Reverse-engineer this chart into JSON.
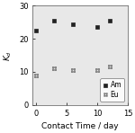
{
  "am_x": [
    0,
    3,
    6,
    10,
    12
  ],
  "am_y": [
    22.5,
    25.5,
    24.5,
    23.5,
    25.5
  ],
  "eu_x": [
    0,
    3,
    6,
    10,
    12
  ],
  "eu_y": [
    9.0,
    11.0,
    10.5,
    10.5,
    11.5
  ],
  "xlabel": "Contact Time / day",
  "ylabel": "$K_d$",
  "xlim": [
    -0.5,
    15
  ],
  "ylim": [
    0,
    30
  ],
  "xticks": [
    0,
    5,
    10,
    15
  ],
  "yticks": [
    0,
    10,
    20,
    30
  ],
  "am_label": "Am",
  "eu_label": "Eu",
  "am_color": "#222222",
  "eu_color": "#666666",
  "bg_color": "#e8e8e8",
  "axis_fontsize": 6.5,
  "tick_fontsize": 6,
  "legend_fontsize": 5.5
}
